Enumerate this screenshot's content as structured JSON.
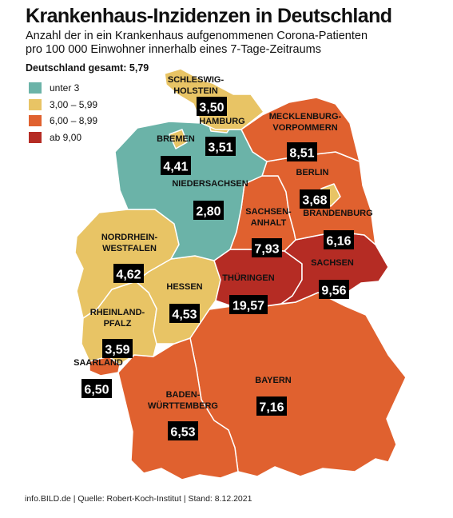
{
  "title": "Krankenhaus-Inzidenzen in Deutschland",
  "subtitle_line1": "Anzahl der in ein Krankenhaus aufgenommenen Corona-Patienten",
  "subtitle_line2": "pro 100 000 Einwohner innerhalb eines 7-Tage-Zeitraums",
  "total": "Deutschland gesamt: 5,79",
  "colors": {
    "low": "#6bb3a8",
    "mid": "#e8c465",
    "high": "#e0612f",
    "max": "#b52c24",
    "border": "#ffffff",
    "box": "#000000"
  },
  "legend": [
    {
      "label": "unter 3",
      "color": "#6bb3a8"
    },
    {
      "label": "3,00 – 5,99",
      "color": "#e8c465"
    },
    {
      "label": "6,00 – 8,99",
      "color": "#e0612f"
    },
    {
      "label": "ab 9,00",
      "color": "#b52c24"
    }
  ],
  "states": [
    {
      "label": [
        "SCHLESWIG-",
        "HOLSTEIN"
      ],
      "value": "3,50",
      "class": "mid"
    },
    {
      "label": [
        "HAMBURG"
      ],
      "value": "3,51",
      "class": "mid"
    },
    {
      "label": [
        "MECKLENBURG-",
        "VORPOMMERN"
      ],
      "value": "8,51",
      "class": "high"
    },
    {
      "label": [
        "BREMEN"
      ],
      "value": "4,41",
      "class": "mid"
    },
    {
      "label": [
        "BERLIN"
      ],
      "value": "3,68",
      "class": "mid"
    },
    {
      "label": [
        "NIEDERSACHSEN"
      ],
      "value": "2,80",
      "class": "low"
    },
    {
      "label": [
        "SACHSEN-",
        "ANHALT"
      ],
      "value": "7,93",
      "class": "high"
    },
    {
      "label": [
        "BRANDENBURG"
      ],
      "value": "6,16",
      "class": "high"
    },
    {
      "label": [
        "NORDRHEIN-",
        "WESTFALEN"
      ],
      "value": "4,62",
      "class": "mid"
    },
    {
      "label": [
        "SACHSEN"
      ],
      "value": "9,56",
      "class": "max"
    },
    {
      "label": [
        "THÜRINGEN"
      ],
      "value": "19,57",
      "class": "max"
    },
    {
      "label": [
        "HESSEN"
      ],
      "value": "4,53",
      "class": "mid"
    },
    {
      "label": [
        "RHEINLAND-",
        "PFALZ"
      ],
      "value": "3,59",
      "class": "mid"
    },
    {
      "label": [
        "SAARLAND"
      ],
      "value": "6,50",
      "class": "high"
    },
    {
      "label": [
        "BAYERN"
      ],
      "value": "7,16",
      "class": "high"
    },
    {
      "label": [
        "BADEN-",
        "WÜRTTEMBERG"
      ],
      "value": "6,53",
      "class": "high"
    }
  ],
  "source": "info.BILD.de | Quelle: Robert-Koch-Institut | Stand: 8.12.2021"
}
